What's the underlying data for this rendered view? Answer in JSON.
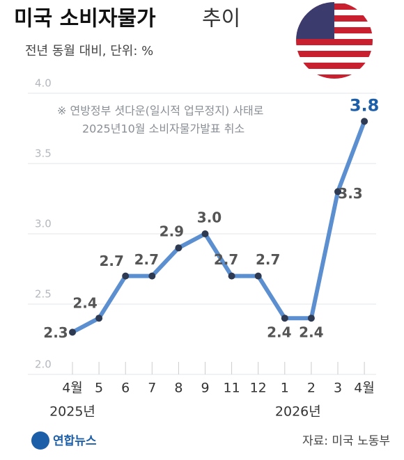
{
  "chart_data": {
    "type": "line",
    "title": "미국 소비자물가",
    "title_suffix": "추이",
    "subtitle": "전년 동월 대비, 단위: %",
    "annotation": [
      "※ 연방정부 셧다운(일시적 업무정지) 사태로",
      "2025년10월 소비자물가발표 취소"
    ],
    "categories": [
      "4월",
      "5",
      "6",
      "7",
      "8",
      "9",
      "11",
      "12",
      "1",
      "2",
      "3",
      "4월"
    ],
    "year_labels": [
      "2025년",
      "2026년"
    ],
    "values": [
      2.3,
      2.4,
      2.7,
      2.7,
      2.9,
      3.0,
      2.7,
      2.7,
      2.4,
      2.4,
      3.3,
      3.8
    ],
    "value_labels": [
      "2.3",
      "2.4",
      "2.7",
      "2.7",
      "2.9",
      "3.0",
      "2.7",
      "2.7",
      "2.4",
      "2.4",
      "3.3",
      "3.8"
    ],
    "color": "#5b8fd0",
    "highlight_color": "#1d5ea8",
    "ylim": [
      2,
      4
    ],
    "yticks": [
      {
        "value": 2,
        "label": "2.0"
      },
      2.5,
      {
        "value": 3,
        "label": "3.0"
      },
      3.5,
      {
        "value": 4,
        "label": "4.0"
      }
    ],
    "grid": true,
    "source": "자료: 미국 노동부"
  },
  "logo": "연합뉴스"
}
